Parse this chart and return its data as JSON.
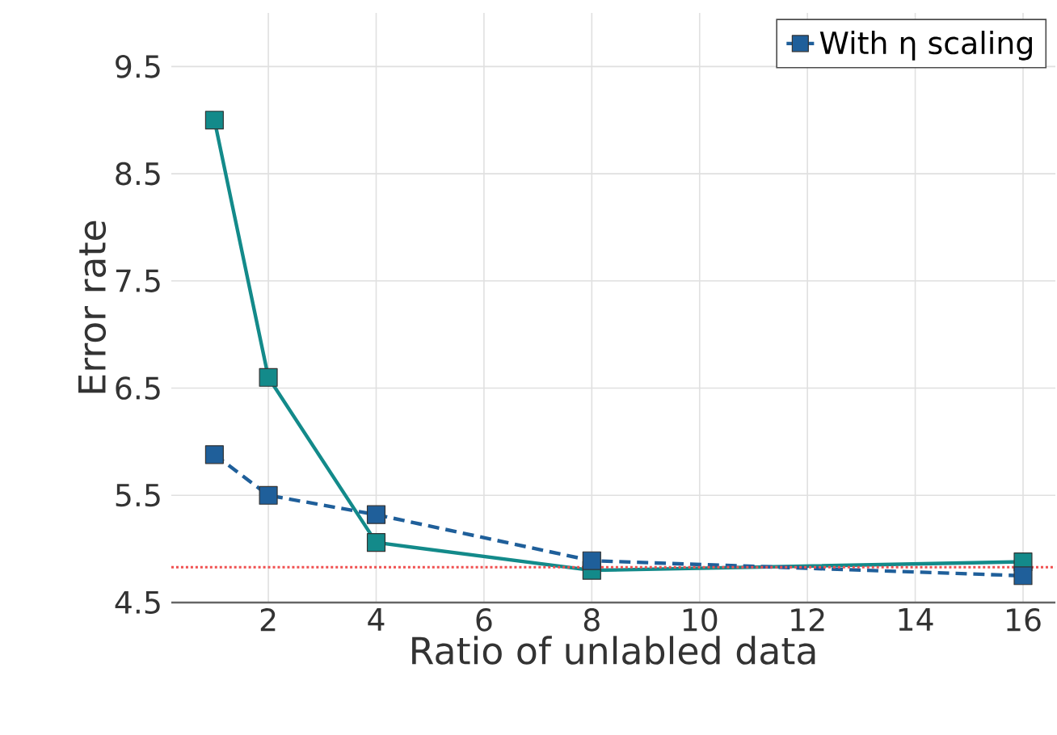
{
  "chart_data": {
    "type": "line",
    "xlabel": "Ratio of unlabled data",
    "ylabel": "Error rate",
    "x": [
      1,
      2,
      4,
      8,
      16
    ],
    "series": [
      {
        "color": "#138a8a",
        "values": [
          9.0,
          6.6,
          5.06,
          4.8,
          4.88
        ],
        "line_style": "solid"
      },
      {
        "name": "With η scaling",
        "color": "#1f5f9a",
        "values": [
          5.88,
          5.5,
          5.32,
          4.89,
          4.75
        ],
        "line_style": "dashed"
      }
    ],
    "marker": "square",
    "xlim": [
      0.2,
      16.6
    ],
    "ylim": [
      4.5,
      10
    ],
    "xticks": [
      2,
      4,
      6,
      8,
      10,
      12,
      14,
      16
    ],
    "yticks": [
      4.5,
      5.5,
      6.5,
      7.5,
      8.5,
      9.5
    ],
    "grid": true,
    "legend": "top right",
    "ref_lines": [
      {
        "axis": "y",
        "value": 4.83,
        "color": "#f05050",
        "line_style": "dotted"
      }
    ]
  }
}
